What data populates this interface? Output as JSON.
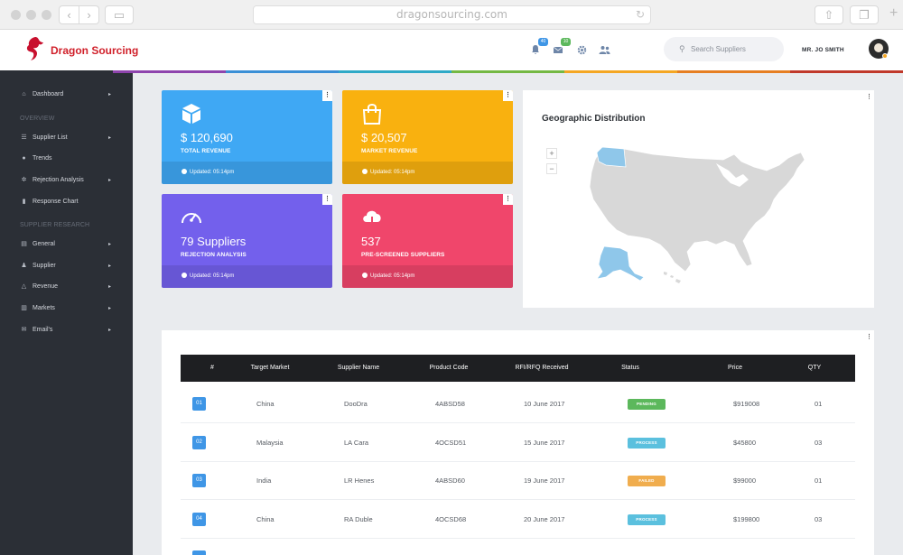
{
  "browser": {
    "url": "dragonsourcing.com",
    "back_icon": "chevron-left-icon",
    "forward_icon": "chevron-right-icon"
  },
  "header": {
    "brand": "Dragon Sourcing",
    "notifications_badge": "40",
    "messages_badge": "10",
    "search_placeholder": "Search Suppliers",
    "user_name": "MR. JO SMITH",
    "colors": {
      "brand": "#d0202a",
      "notif_badge": "#3f96e6",
      "msg_badge": "#5cb85c"
    }
  },
  "stripe_colors": [
    "#2b2f36",
    "#8e44ad",
    "#3a8fd6",
    "#2fa9c7",
    "#74b843",
    "#f4a623",
    "#e67e22",
    "#c0392b"
  ],
  "sidebar": {
    "top_item": {
      "label": "Dashboard",
      "icon": "home-icon"
    },
    "sections": [
      {
        "title": "OVERVIEW",
        "items": [
          {
            "label": "Supplier List",
            "icon": "list-icon",
            "has_submenu": true
          },
          {
            "label": "Trends",
            "icon": "drop-icon",
            "has_submenu": false
          },
          {
            "label": "Rejection Analysis",
            "icon": "gear-icon",
            "has_submenu": true
          },
          {
            "label": "Response Chart",
            "icon": "bar-chart-icon",
            "has_submenu": false
          }
        ]
      },
      {
        "title": "SUPPLIER RESEARCH",
        "items": [
          {
            "label": "General",
            "icon": "clipboard-icon",
            "has_submenu": true
          },
          {
            "label": "Supplier",
            "icon": "user-icon",
            "has_submenu": true
          },
          {
            "label": "Revenue",
            "icon": "bag-icon",
            "has_submenu": true
          },
          {
            "label": "Markets",
            "icon": "map-icon",
            "has_submenu": true
          },
          {
            "label": "Email's",
            "icon": "envelope-icon",
            "has_submenu": true
          }
        ]
      }
    ]
  },
  "cards": [
    {
      "value": "$ 120,690",
      "label": "TOTAL REVENUE",
      "updated": "Updated: 05:14pm",
      "icon": "box-icon",
      "color": "#3fa8f4"
    },
    {
      "value": "$ 20,507",
      "label": "MARKET REVENUE",
      "updated": "Updated: 05:14pm",
      "icon": "shopping-bag-icon",
      "color": "#f9b10f"
    },
    {
      "value": "79 Suppliers",
      "label": "REJECTION ANALYSIS",
      "updated": "Updated: 05:14pm",
      "icon": "gauge-icon",
      "color": "#7360ec"
    },
    {
      "value": "537",
      "label": "PRE-SCREENED SUPPLIERS",
      "updated": "Updated: 05:14pm",
      "icon": "cloud-download-icon",
      "color": "#f0466b"
    }
  ],
  "map": {
    "title": "Geographic Distribution",
    "zoom_in": "+",
    "zoom_out": "−",
    "highlighted_states": [
      "Washington",
      "Alaska"
    ],
    "highlight_color": "#8fc7ea",
    "base_color": "#d8d8d8"
  },
  "table": {
    "headers": [
      "#",
      "Target Market",
      "Supplier Name",
      "Product Code",
      "RFI/RFQ Received",
      "Status",
      "Price",
      "QTY"
    ],
    "rows": [
      {
        "num": "01",
        "market": "China",
        "supplier": "DooDra",
        "code": "4ABSD58",
        "received": "10 June 2017",
        "status": "PENDING",
        "status_color": "#5cb85c",
        "price": "$919008",
        "qty": "01"
      },
      {
        "num": "02",
        "market": "Malaysia",
        "supplier": "LA Cara",
        "code": "4OCSD51",
        "received": "15 June 2017",
        "status": "PROCESS",
        "status_color": "#5bc0de",
        "price": "$45800",
        "qty": "03"
      },
      {
        "num": "03",
        "market": "India",
        "supplier": "LR Henes",
        "code": "4ABSD60",
        "received": "19 June 2017",
        "status": "FAILED",
        "status_color": "#f0ad4e",
        "price": "$99000",
        "qty": "01"
      },
      {
        "num": "04",
        "market": "China",
        "supplier": "RA Duble",
        "code": "4OCSD68",
        "received": "20 June 2017",
        "status": "PROCESS",
        "status_color": "#5bc0de",
        "price": "$199800",
        "qty": "03"
      }
    ]
  }
}
